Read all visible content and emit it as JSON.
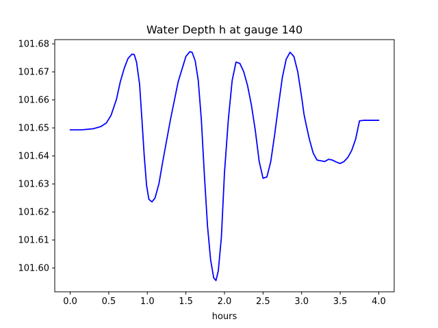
{
  "chart_data": {
    "type": "line",
    "title": "Water Depth h at gauge 140",
    "xlabel": "hours",
    "ylabel": "",
    "xlim": [
      -0.2,
      4.2
    ],
    "ylim": [
      101.5915,
      101.6815
    ],
    "x_ticks": [
      0.0,
      0.5,
      1.0,
      1.5,
      2.0,
      2.5,
      3.0,
      3.5,
      4.0
    ],
    "x_tick_labels": [
      "0.0",
      "0.5",
      "1.0",
      "1.5",
      "2.0",
      "2.5",
      "3.0",
      "3.5",
      "4.0"
    ],
    "y_ticks": [
      101.6,
      101.61,
      101.62,
      101.63,
      101.64,
      101.65,
      101.66,
      101.67,
      101.68
    ],
    "y_tick_labels": [
      "101.60",
      "101.61",
      "101.62",
      "101.63",
      "101.64",
      "101.65",
      "101.66",
      "101.67",
      "101.68"
    ],
    "grid": false,
    "series": [
      {
        "color": "#0000ff",
        "x": [
          0.0,
          0.15,
          0.3,
          0.4,
          0.47,
          0.53,
          0.6,
          0.65,
          0.7,
          0.75,
          0.8,
          0.83,
          0.86,
          0.9,
          0.93,
          0.96,
          0.99,
          1.02,
          1.06,
          1.1,
          1.15,
          1.2,
          1.3,
          1.4,
          1.5,
          1.55,
          1.58,
          1.62,
          1.66,
          1.7,
          1.74,
          1.78,
          1.82,
          1.86,
          1.89,
          1.92,
          1.96,
          2.0,
          2.05,
          2.1,
          2.15,
          2.2,
          2.25,
          2.3,
          2.35,
          2.4,
          2.45,
          2.5,
          2.55,
          2.6,
          2.65,
          2.7,
          2.75,
          2.8,
          2.85,
          2.9,
          2.95,
          3.0,
          3.03,
          3.06,
          3.1,
          3.15,
          3.2,
          3.3,
          3.35,
          3.4,
          3.45,
          3.5,
          3.55,
          3.6,
          3.65,
          3.7,
          3.75,
          3.8,
          3.85,
          3.9,
          3.95,
          4.0
        ],
        "y": [
          101.6493,
          101.6493,
          101.6497,
          101.6505,
          101.6518,
          101.6545,
          101.6602,
          101.6665,
          101.6712,
          101.6748,
          101.6763,
          101.6762,
          101.6735,
          101.6655,
          101.653,
          101.64,
          101.6295,
          101.6245,
          101.6236,
          101.625,
          101.63,
          101.638,
          101.653,
          101.6665,
          101.6755,
          101.6772,
          101.677,
          101.674,
          101.667,
          101.653,
          101.633,
          101.615,
          101.603,
          101.5965,
          101.5955,
          101.599,
          101.611,
          101.634,
          101.653,
          101.667,
          101.6735,
          101.673,
          101.67,
          101.665,
          101.658,
          101.649,
          101.638,
          101.632,
          101.6325,
          101.638,
          101.6475,
          101.658,
          101.668,
          101.6745,
          101.677,
          101.6755,
          101.67,
          101.661,
          101.655,
          101.651,
          101.646,
          101.641,
          101.6385,
          101.638,
          101.6388,
          101.6385,
          101.6378,
          101.6373,
          101.638,
          101.6395,
          101.642,
          101.646,
          101.6525,
          101.6527,
          101.6527,
          101.6527,
          101.6527,
          101.6527
        ]
      }
    ]
  }
}
